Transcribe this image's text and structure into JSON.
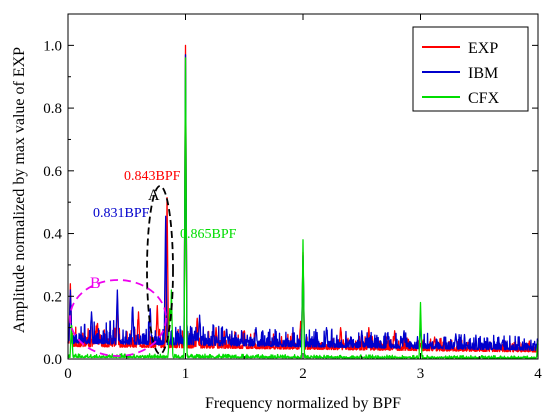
{
  "chart_data": {
    "type": "line",
    "title": "",
    "xlabel": "Frequency normalized by BPF",
    "ylabel": "Amplitude normalized by max value of EXP",
    "xlim": [
      0,
      4
    ],
    "ylim": [
      0,
      1.1
    ],
    "x_ticks": [
      0,
      1,
      2,
      3,
      4
    ],
    "x_tick_labels": [
      "0",
      "1",
      "2",
      "3",
      "4"
    ],
    "y_ticks": [
      0.0,
      0.2,
      0.4,
      0.6,
      0.8,
      1.0
    ],
    "y_tick_labels": [
      "0.0",
      "0.2",
      "0.4",
      "0.6",
      "0.8",
      "1.0"
    ],
    "grid": false,
    "legend_position": "top-right",
    "series": [
      {
        "name": "EXP",
        "color": "#ff0000",
        "baseline": 0.04,
        "noise": 0.05,
        "peaks": [
          [
            0.02,
            0.24
          ],
          [
            0.25,
            0.12
          ],
          [
            0.42,
            0.2
          ],
          [
            0.6,
            0.15
          ],
          [
            0.76,
            0.17
          ],
          [
            0.843,
            0.52
          ],
          [
            1.0,
            1.0
          ],
          [
            1.1,
            0.13
          ],
          [
            1.26,
            0.1
          ],
          [
            1.5,
            0.09
          ],
          [
            1.98,
            0.12
          ],
          [
            2.0,
            0.34
          ],
          [
            2.32,
            0.1
          ],
          [
            2.56,
            0.1
          ],
          [
            2.78,
            0.09
          ],
          [
            3.0,
            0.05
          ],
          [
            3.12,
            0.07
          ],
          [
            3.6,
            0.05
          ]
        ]
      },
      {
        "name": "IBM",
        "color": "#0000cc",
        "baseline": 0.05,
        "noise": 0.06,
        "peaks": [
          [
            0.02,
            0.22
          ],
          [
            0.2,
            0.15
          ],
          [
            0.42,
            0.22
          ],
          [
            0.55,
            0.18
          ],
          [
            0.7,
            0.16
          ],
          [
            0.831,
            0.47
          ],
          [
            1.0,
            0.97
          ],
          [
            1.12,
            0.14
          ],
          [
            1.35,
            0.1
          ],
          [
            1.6,
            0.1
          ],
          [
            2.0,
            0.33
          ],
          [
            2.2,
            0.1
          ],
          [
            2.5,
            0.09
          ],
          [
            2.86,
            0.09
          ],
          [
            3.0,
            0.11
          ],
          [
            3.3,
            0.08
          ],
          [
            3.7,
            0.06
          ]
        ]
      },
      {
        "name": "CFX",
        "color": "#00dd00",
        "baseline": 0.005,
        "noise": 0.01,
        "peaks": [
          [
            0.03,
            0.12
          ],
          [
            0.865,
            0.17
          ],
          [
            0.88,
            0.22
          ],
          [
            1.0,
            0.96
          ],
          [
            2.0,
            0.38
          ],
          [
            3.0,
            0.18
          ],
          [
            4.0,
            0.06
          ]
        ]
      }
    ],
    "annotations": [
      {
        "text": "0.843BPF",
        "color": "#ff0000",
        "x": 0.843,
        "y": 0.52
      },
      {
        "text": "0.831BPF",
        "color": "#0000cc",
        "x": 0.831,
        "y": 0.47
      },
      {
        "text": "0.865BPF",
        "color": "#00dd00",
        "x": 0.865,
        "y": 0.17
      },
      {
        "text": "A",
        "color": "#000000"
      },
      {
        "text": "B",
        "color": "#ee00ee"
      }
    ]
  }
}
